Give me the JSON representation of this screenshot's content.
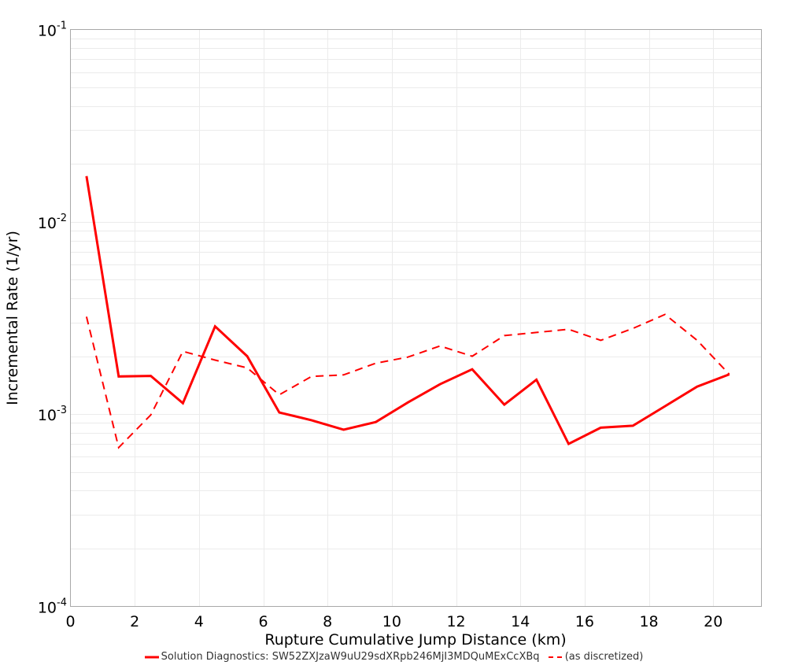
{
  "chart_data": {
    "type": "line",
    "title": "",
    "xlabel": "Rupture Cumulative Jump Distance (km)",
    "ylabel": "Incremental Rate (1/yr)",
    "xlim": [
      0,
      21.5
    ],
    "ylim": [
      0.0001,
      0.1
    ],
    "yscale": "log",
    "grid": true,
    "legend_position": "bottom",
    "x_ticks": [
      0,
      2,
      4,
      6,
      8,
      10,
      12,
      14,
      16,
      18,
      20
    ],
    "y_ticks": [
      {
        "base": "10",
        "exp": "-1",
        "value": 0.1
      },
      {
        "base": "10",
        "exp": "-2",
        "value": 0.01
      },
      {
        "base": "10",
        "exp": "-3",
        "value": 0.001
      },
      {
        "base": "10",
        "exp": "-4",
        "value": 0.0001
      }
    ],
    "x": [
      0.5,
      1.5,
      2.5,
      3.5,
      4.5,
      5.5,
      6.5,
      7.5,
      8.5,
      9.5,
      10.5,
      11.5,
      12.5,
      13.5,
      14.5,
      15.5,
      16.5,
      17.5,
      18.5,
      19.5,
      20.5
    ],
    "series": [
      {
        "name": "Solution Diagnostics: SW52ZXJzaW9uU29sdXRpb246MjI3MDQuMExCcXBq",
        "style": "solid",
        "color": "#ff0000",
        "values": [
          0.0173,
          0.00157,
          0.00158,
          0.00114,
          0.00286,
          0.002,
          0.00102,
          0.00093,
          0.00083,
          0.00091,
          0.00115,
          0.00143,
          0.00171,
          0.00112,
          0.00151,
          0.0007,
          0.00085,
          0.00087,
          0.0011,
          0.00139,
          0.00161
        ]
      },
      {
        "name": "(as discretized)",
        "style": "dashed",
        "color": "#ff0000",
        "values": [
          0.00321,
          0.00067,
          0.00099,
          0.00212,
          0.00191,
          0.00174,
          0.00126,
          0.00157,
          0.0016,
          0.00184,
          0.00198,
          0.00226,
          0.002,
          0.00256,
          0.00266,
          0.00276,
          0.00242,
          0.00279,
          0.0033,
          0.00242,
          0.00161
        ]
      }
    ]
  },
  "legend": {
    "items": [
      {
        "label": "Solution Diagnostics: SW52ZXJzaW9uU29sdXRpb246MjI3MDQuMExCcXBq",
        "style": "solid"
      },
      {
        "label": "(as discretized)",
        "style": "dashed"
      }
    ]
  }
}
